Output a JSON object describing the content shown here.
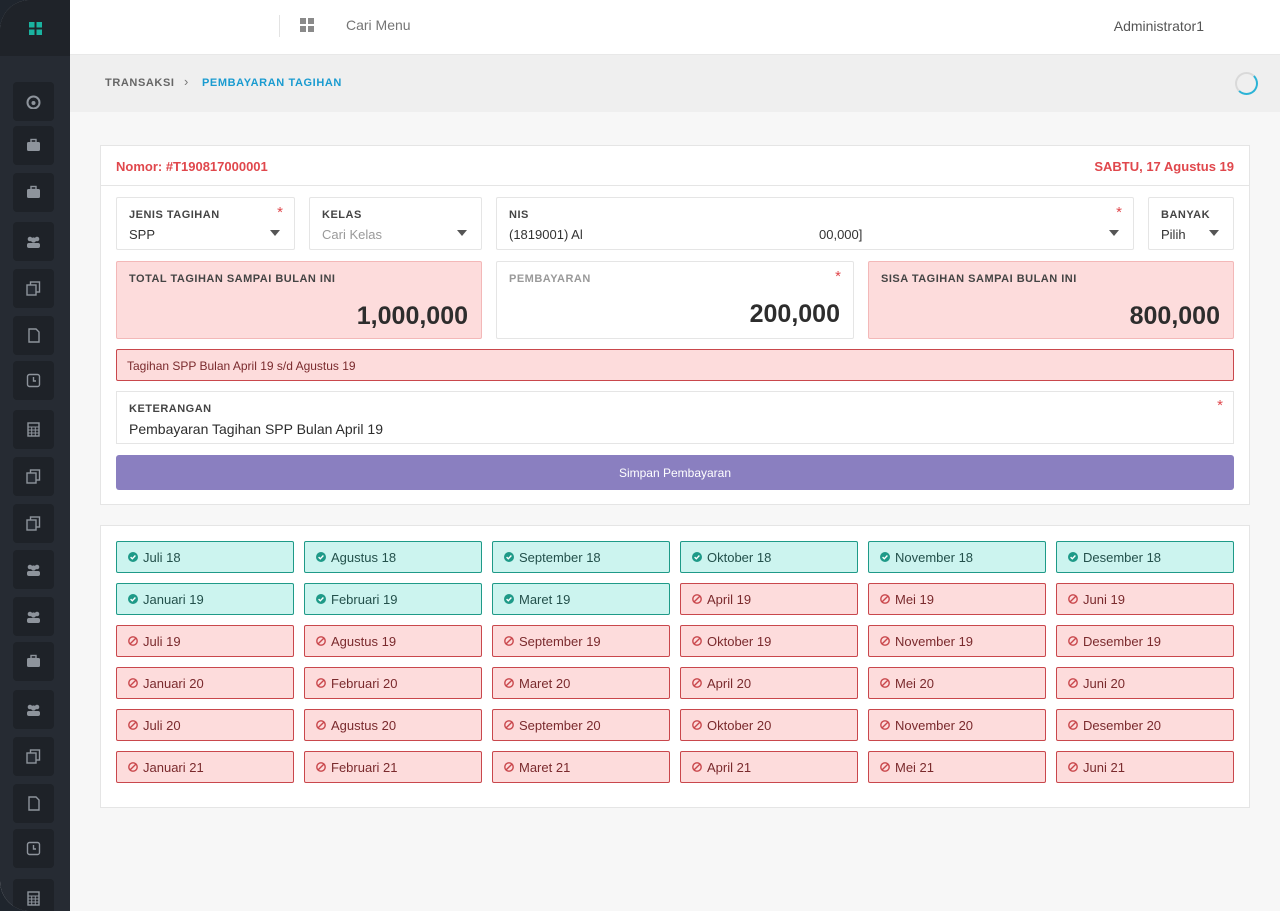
{
  "topbar": {
    "search_placeholder": "Cari Menu",
    "user_name": "Administrator1"
  },
  "breadcrumb": {
    "parent": "TRANSAKSI",
    "current": "PEMBAYARAN TAGIHAN"
  },
  "transaction": {
    "number": "Nomor: #T190817000001",
    "date": "SABTU, 17 Agustus 19"
  },
  "form": {
    "jenis_tagihan": {
      "label": "JENIS TAGIHAN",
      "value": "SPP",
      "required": "*"
    },
    "kelas": {
      "label": "KELAS",
      "placeholder": "Cari Kelas"
    },
    "nis": {
      "label": "NIS",
      "value": "(1819001) Al",
      "value_tail": "00,000]",
      "required": "*"
    },
    "banyak": {
      "label": "BANYAK",
      "value": "Pilih"
    },
    "total": {
      "label": "TOTAL TAGIHAN SAMPAI BULAN INI",
      "amount": "1,000,000"
    },
    "pembayaran": {
      "label": "PEMBAYARAN",
      "amount": "200,000",
      "required": "*"
    },
    "sisa": {
      "label": "SISA TAGIHAN SAMPAI BULAN INI",
      "amount": "800,000"
    },
    "info_text": "Tagihan SPP Bulan April 19 s/d Agustus 19",
    "keterangan": {
      "label": "KETERANGAN",
      "value": "Pembayaran Tagihan SPP Bulan April 19",
      "required": "*"
    },
    "save_label": "Simpan Pembayaran"
  },
  "months": [
    {
      "label": "Juli 18",
      "status": "paid"
    },
    {
      "label": "Agustus 18",
      "status": "paid"
    },
    {
      "label": "September 18",
      "status": "paid"
    },
    {
      "label": "Oktober 18",
      "status": "paid"
    },
    {
      "label": "November 18",
      "status": "paid"
    },
    {
      "label": "Desember 18",
      "status": "paid"
    },
    {
      "label": "Januari 19",
      "status": "paid"
    },
    {
      "label": "Februari 19",
      "status": "paid"
    },
    {
      "label": "Maret 19",
      "status": "paid"
    },
    {
      "label": "April 19",
      "status": "unpaid"
    },
    {
      "label": "Mei 19",
      "status": "unpaid"
    },
    {
      "label": "Juni 19",
      "status": "unpaid"
    },
    {
      "label": "Juli 19",
      "status": "unpaid"
    },
    {
      "label": "Agustus 19",
      "status": "unpaid"
    },
    {
      "label": "September 19",
      "status": "unpaid"
    },
    {
      "label": "Oktober 19",
      "status": "unpaid"
    },
    {
      "label": "November 19",
      "status": "unpaid"
    },
    {
      "label": "Desember 19",
      "status": "unpaid"
    },
    {
      "label": "Januari 20",
      "status": "unpaid"
    },
    {
      "label": "Februari 20",
      "status": "unpaid"
    },
    {
      "label": "Maret 20",
      "status": "unpaid"
    },
    {
      "label": "April 20",
      "status": "unpaid"
    },
    {
      "label": "Mei 20",
      "status": "unpaid"
    },
    {
      "label": "Juni 20",
      "status": "unpaid"
    },
    {
      "label": "Juli 20",
      "status": "unpaid"
    },
    {
      "label": "Agustus 20",
      "status": "unpaid"
    },
    {
      "label": "September 20",
      "status": "unpaid"
    },
    {
      "label": "Oktober 20",
      "status": "unpaid"
    },
    {
      "label": "November 20",
      "status": "unpaid"
    },
    {
      "label": "Desember 20",
      "status": "unpaid"
    },
    {
      "label": "Januari 21",
      "status": "unpaid"
    },
    {
      "label": "Februari 21",
      "status": "unpaid"
    },
    {
      "label": "Maret 21",
      "status": "unpaid"
    },
    {
      "label": "April 21",
      "status": "unpaid"
    },
    {
      "label": "Mei 21",
      "status": "unpaid"
    },
    {
      "label": "Juni 21",
      "status": "unpaid"
    }
  ],
  "sidebar_icons": [
    "dashboard-icon",
    "briefcase-icon",
    "briefcase-icon",
    "users-icon",
    "copy-icon",
    "document-icon",
    "clock-icon",
    "calculator-icon",
    "copy-icon",
    "copy-icon",
    "users-icon",
    "users-icon",
    "briefcase-icon",
    "users-icon",
    "copy-icon",
    "document-icon",
    "clock-icon",
    "calculator-icon"
  ],
  "colors": {
    "paid_bg": "#ccf4ef",
    "unpaid_bg": "#fddcdc",
    "accent_red": "#e0474c",
    "button": "#8a7fc0",
    "link_blue": "#1a9bd0"
  }
}
